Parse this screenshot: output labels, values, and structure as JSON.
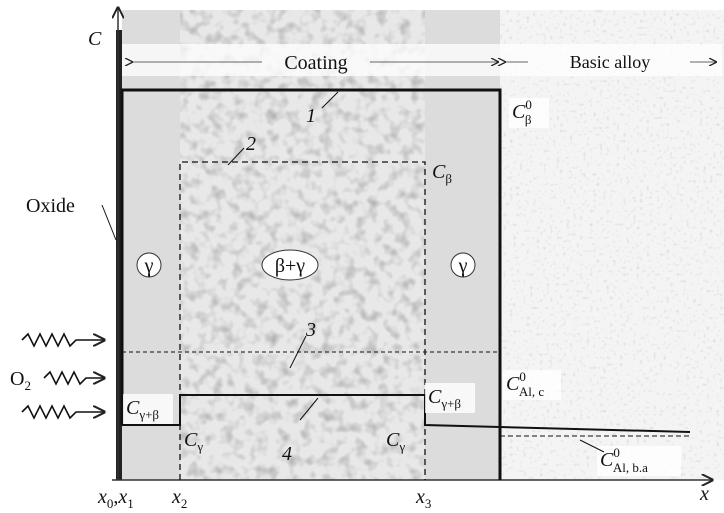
{
  "axes": {
    "y_label": "C",
    "x_label": "x"
  },
  "regions": {
    "coating": "Coating",
    "basic_alloy": "Basic alloy",
    "oxide": "Oxide"
  },
  "phases": {
    "left": "γ",
    "middle": "β+γ",
    "right": "γ"
  },
  "curves": [
    "1",
    "2",
    "3",
    "4"
  ],
  "gas": {
    "main": "O",
    "sub": "2"
  },
  "levels": {
    "c_beta_0": {
      "main": "C",
      "sub": "β",
      "sup": "0"
    },
    "c_beta": {
      "main": "C",
      "sub": "β"
    },
    "c_al_c_0": {
      "main": "C",
      "sub": "Al, c",
      "sup": "0"
    },
    "c_al_ba_0": {
      "main": "C",
      "sub": "Al, b.a",
      "sup": "0"
    },
    "c_gb_left": {
      "main": "C",
      "sub": "γ+β"
    },
    "c_gb_right": {
      "main": "C",
      "sub": "γ+β"
    },
    "c_g_left": {
      "main": "C",
      "sub": "γ"
    },
    "c_g_right": {
      "main": "C",
      "sub": "γ"
    }
  },
  "x_ticks": [
    {
      "main": "x",
      "sub": "0",
      "sep": ",",
      "main2": "x",
      "sub2": "1"
    },
    {
      "main": "x",
      "sub": "2"
    },
    {
      "main": "x",
      "sub": "3"
    }
  ]
}
